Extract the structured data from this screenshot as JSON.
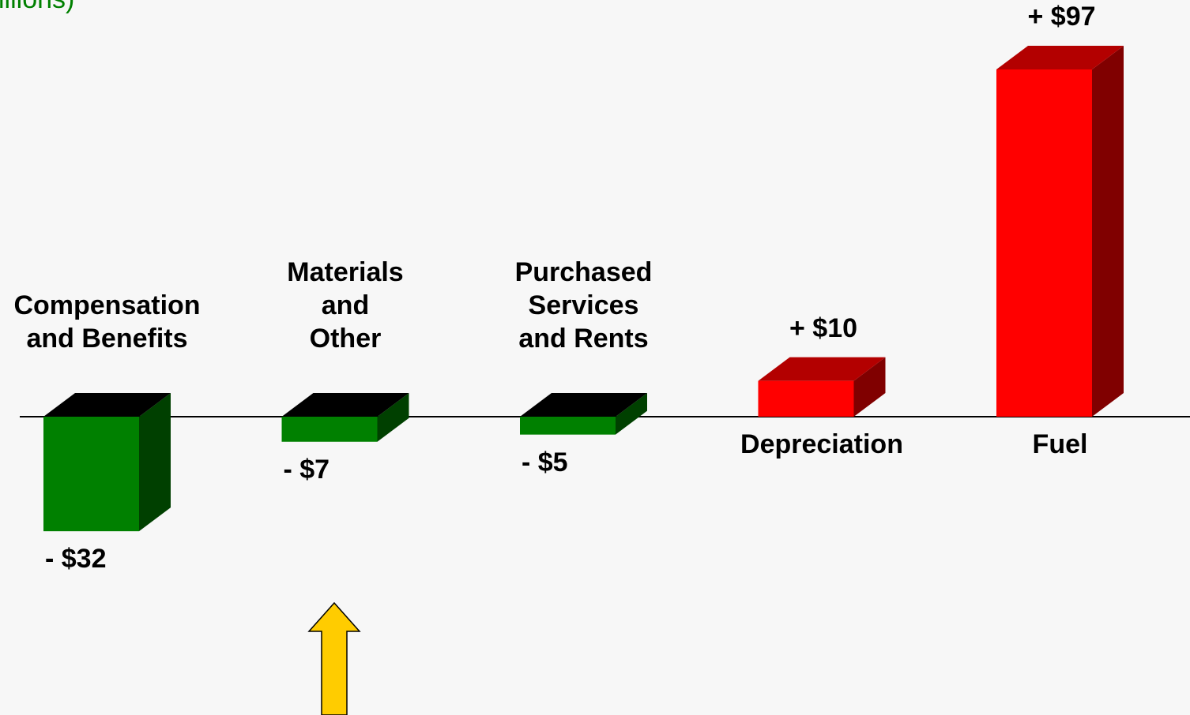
{
  "chart_data": {
    "type": "bar",
    "title": "illions)",
    "categories": [
      "Compensation and Benefits",
      "Materials and Other",
      "Purchased Services and Rents",
      "Depreciation",
      "Fuel"
    ],
    "values": [
      -32,
      -7,
      -5,
      10,
      97
    ],
    "value_labels": [
      "- $32",
      "- $7",
      "- $5",
      "+ $10",
      "+ $97"
    ],
    "colors": {
      "negative": "#008000",
      "positive": "#ff0000"
    }
  }
}
